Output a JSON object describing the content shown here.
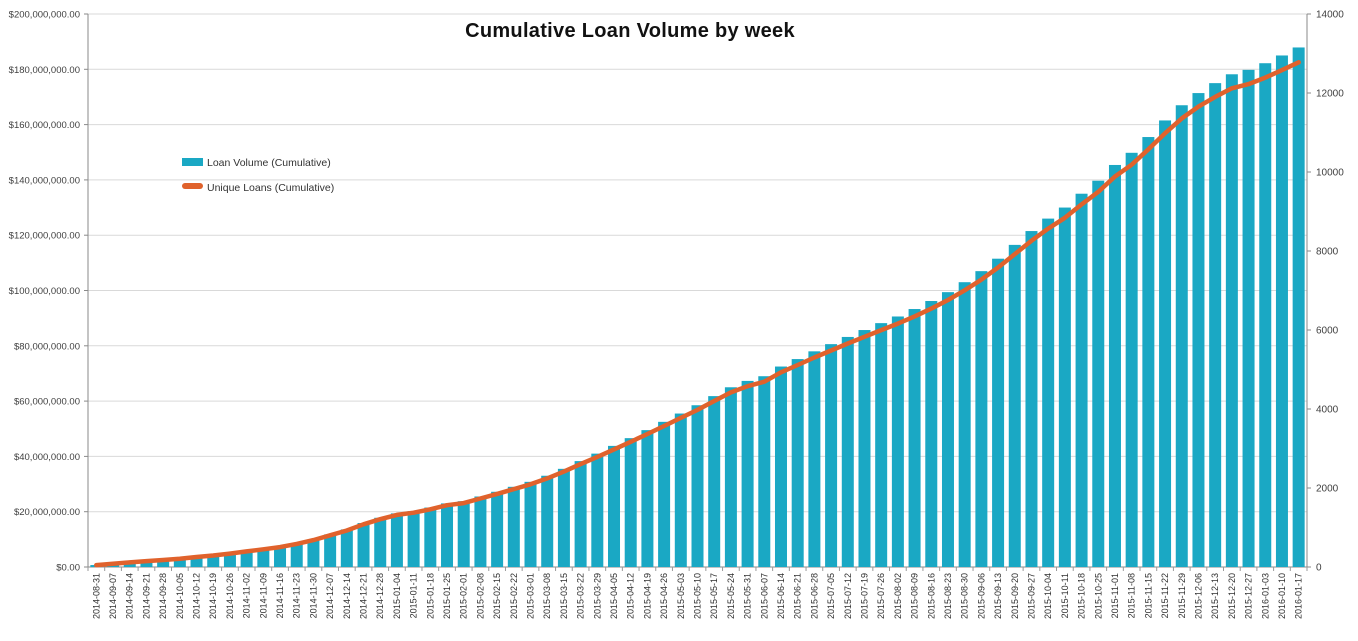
{
  "title": "Cumulative Loan Volume by week",
  "legend": {
    "items": [
      {
        "label": "Loan Volume (Cumulative)",
        "color": "#1AA8C4"
      },
      {
        "label": "Unique Loans (Cumulative)",
        "color": "#E0622C"
      }
    ]
  },
  "left_axis": {
    "labels": [
      "$0.00",
      "$20,000,000.00",
      "$40,000,000.00",
      "$60,000,000.00",
      "$80,000,000.00",
      "$100,000,000.00",
      "$120,000,000.00",
      "$140,000,000.00",
      "$160,000,000.00",
      "$180,000,000.00",
      "$200,000,000.00"
    ],
    "tick_values": [
      0,
      20000000,
      40000000,
      60000000,
      80000000,
      100000000,
      120000000,
      140000000,
      160000000,
      180000000,
      200000000
    ]
  },
  "right_axis": {
    "labels": [
      "0",
      "2000",
      "4000",
      "6000",
      "8000",
      "10000",
      "12000",
      "14000"
    ],
    "tick_values": [
      0,
      2000,
      4000,
      6000,
      8000,
      10000,
      12000,
      14000
    ]
  },
  "chart_data": {
    "type": "bar",
    "title": "Cumulative Loan Volume by week",
    "grid": "horizontal",
    "legend_position": "inside-top-left",
    "left_ylim": [
      0,
      200000000
    ],
    "right_ylim": [
      0,
      14000
    ],
    "categories": [
      "2014-08-31",
      "2014-09-07",
      "2014-09-14",
      "2014-09-21",
      "2014-09-28",
      "2014-10-05",
      "2014-10-12",
      "2014-10-19",
      "2014-10-26",
      "2014-11-02",
      "2014-11-09",
      "2014-11-16",
      "2014-11-23",
      "2014-11-30",
      "2014-12-07",
      "2014-12-14",
      "2014-12-21",
      "2014-12-28",
      "2015-01-04",
      "2015-01-11",
      "2015-01-18",
      "2015-01-25",
      "2015-02-01",
      "2015-02-08",
      "2015-02-15",
      "2015-02-22",
      "2015-03-01",
      "2015-03-08",
      "2015-03-15",
      "2015-03-22",
      "2015-03-29",
      "2015-04-05",
      "2015-04-12",
      "2015-04-19",
      "2015-04-26",
      "2015-05-03",
      "2015-05-10",
      "2015-05-17",
      "2015-05-24",
      "2015-05-31",
      "2015-06-07",
      "2015-06-14",
      "2015-06-21",
      "2015-06-28",
      "2015-07-05",
      "2015-07-12",
      "2015-07-19",
      "2015-07-26",
      "2015-08-02",
      "2015-08-09",
      "2015-08-16",
      "2015-08-23",
      "2015-08-30",
      "2015-09-06",
      "2015-09-13",
      "2015-09-20",
      "2015-09-27",
      "2015-10-04",
      "2015-10-11",
      "2015-10-18",
      "2015-10-25",
      "2015-11-01",
      "2015-11-08",
      "2015-11-15",
      "2015-11-22",
      "2015-11-29",
      "2015-12-06",
      "2015-12-13",
      "2015-12-20",
      "2015-12-27",
      "2016-01-03",
      "2016-01-10",
      "2016-01-17"
    ],
    "series": [
      {
        "name": "Loan Volume (Cumulative)",
        "type": "bar",
        "axis": "left",
        "color": "#1AA8C4",
        "values": [
          700000,
          1200000,
          1700000,
          2200000,
          2600000,
          3100000,
          3700000,
          4300000,
          5000000,
          5800000,
          6600000,
          7400000,
          8600000,
          10000000,
          11800000,
          13600000,
          15900000,
          17800000,
          19400000,
          20200000,
          21500000,
          23000000,
          23800000,
          25500000,
          27200000,
          29000000,
          30800000,
          33000000,
          35500000,
          38300000,
          41000000,
          43800000,
          46600000,
          49500000,
          52500000,
          55500000,
          58500000,
          61800000,
          65000000,
          67300000,
          69000000,
          72500000,
          75200000,
          78000000,
          80600000,
          83200000,
          85700000,
          88200000,
          90600000,
          93300000,
          96200000,
          99400000,
          103000000,
          107000000,
          111500000,
          116500000,
          121500000,
          126000000,
          130000000,
          135000000,
          139700000,
          145400000,
          149800000,
          155500000,
          161500000,
          167000000,
          171400000,
          175000000,
          178200000,
          179800000,
          182200000,
          185000000,
          187900000
        ]
      },
      {
        "name": "Unique Loans (Cumulative)",
        "type": "line",
        "axis": "right",
        "color": "#E0622C",
        "values": [
          48,
          82,
          116,
          150,
          177,
          211,
          252,
          292,
          340,
          394,
          449,
          503,
          585,
          680,
          802,
          925,
          1081,
          1210,
          1319,
          1374,
          1462,
          1564,
          1618,
          1734,
          1850,
          1972,
          2094,
          2244,
          2414,
          2604,
          2788,
          2978,
          3169,
          3366,
          3570,
          3774,
          3978,
          4202,
          4420,
          4576,
          4692,
          4930,
          5114,
          5304,
          5481,
          5658,
          5828,
          5998,
          6161,
          6344,
          6542,
          6759,
          7004,
          7276,
          7582,
          7922,
          8262,
          8568,
          8840,
          9180,
          9500,
          9887,
          10186,
          10574,
          10982,
          11356,
          11655,
          11900,
          12118,
          12226,
          12390,
          12580,
          12777
        ]
      }
    ]
  }
}
